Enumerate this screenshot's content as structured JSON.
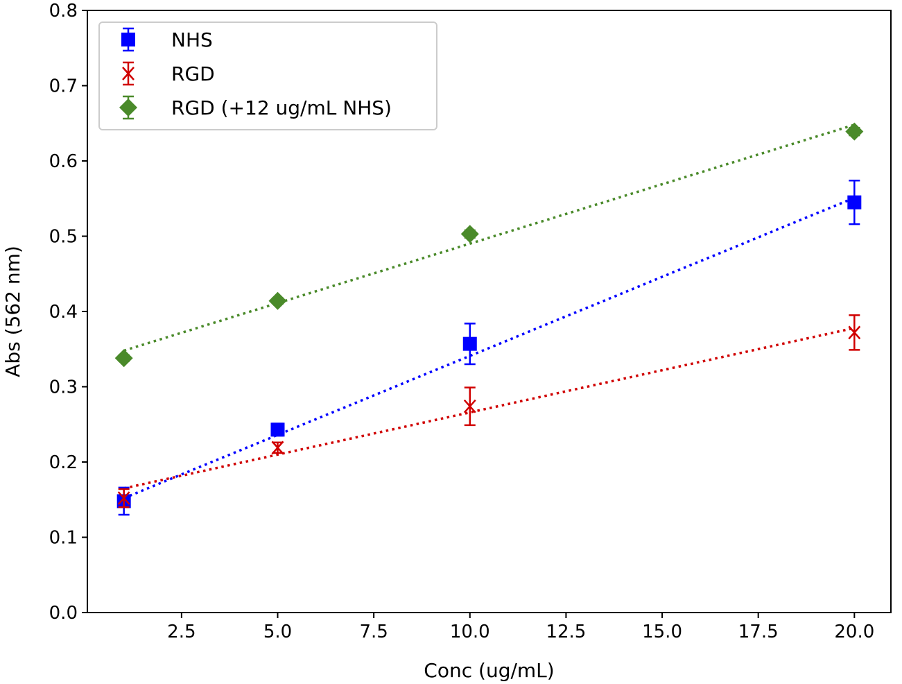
{
  "chart_data": {
    "type": "scatter",
    "title": "",
    "xlabel": "Conc (ug/mL)",
    "ylabel": "Abs (562 nm)",
    "xlim": [
      0.05,
      20.95
    ],
    "ylim": [
      0.0,
      0.8
    ],
    "x_ticks": [
      2.5,
      5.0,
      7.5,
      10.0,
      12.5,
      15.0,
      17.5,
      20.0
    ],
    "x_tick_labels": [
      "2.5",
      "5.0",
      "7.5",
      "10.0",
      "12.5",
      "15.0",
      "17.5",
      "20.0"
    ],
    "y_ticks": [
      0.0,
      0.1,
      0.2,
      0.3,
      0.4,
      0.5,
      0.6,
      0.7,
      0.8
    ],
    "y_tick_labels": [
      "0.0",
      "0.1",
      "0.2",
      "0.3",
      "0.4",
      "0.5",
      "0.6",
      "0.7",
      "0.8"
    ],
    "grid": false,
    "legend_position": "top-left",
    "series": [
      {
        "name": "NHS",
        "color": "#0000ff",
        "marker": "square",
        "x": [
          1,
          5,
          10,
          20
        ],
        "y": [
          0.148,
          0.243,
          0.357,
          0.545
        ],
        "yerr": [
          0.018,
          0.008,
          0.027,
          0.029
        ],
        "fit": {
          "style": "dotted",
          "x": [
            1,
            20
          ],
          "y": [
            0.152,
            0.551
          ]
        }
      },
      {
        "name": "RGD",
        "color": "#d00000",
        "marker": "x",
        "x": [
          1,
          5,
          10,
          20
        ],
        "y": [
          0.152,
          0.219,
          0.274,
          0.372
        ],
        "yerr": [
          0.012,
          0.007,
          0.025,
          0.023
        ],
        "fit": {
          "style": "dotted",
          "x": [
            1,
            20
          ],
          "y": [
            0.165,
            0.378
          ]
        }
      },
      {
        "name": "RGD (+12 ug/mL NHS)",
        "color": "#4a8a2a",
        "marker": "diamond",
        "x": [
          1,
          5,
          10,
          20
        ],
        "y": [
          0.338,
          0.414,
          0.503,
          0.639
        ],
        "yerr": [
          0.004,
          0.004,
          0.005,
          0.005
        ],
        "fit": {
          "style": "dotted",
          "x": [
            1,
            20
          ],
          "y": [
            0.348,
            0.648
          ]
        }
      }
    ]
  }
}
